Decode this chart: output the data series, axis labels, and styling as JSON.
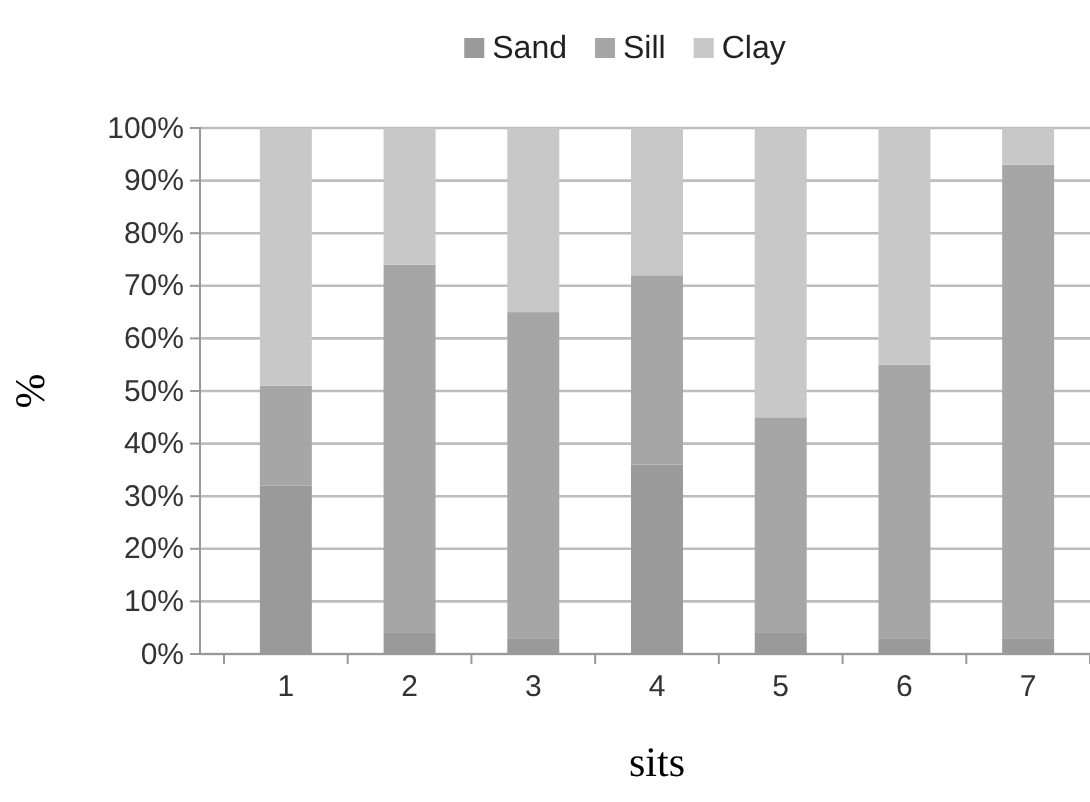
{
  "chart_data": {
    "type": "bar",
    "stacked": true,
    "categories": [
      "1",
      "2",
      "3",
      "4",
      "5",
      "6",
      "7"
    ],
    "series": [
      {
        "name": "Sand",
        "color": "#9a9a9a",
        "values": [
          32,
          4,
          3,
          36,
          4,
          3,
          3
        ]
      },
      {
        "name": "Sill",
        "color": "#a6a6a6",
        "values": [
          19,
          70,
          62,
          36,
          41,
          52,
          90
        ]
      },
      {
        "name": "Clay",
        "color": "#c8c8c8",
        "values": [
          49,
          26,
          35,
          28,
          55,
          45,
          7
        ]
      }
    ],
    "xlabel": "sits",
    "ylabel": "%",
    "ylim": [
      0,
      100
    ],
    "yticks": [
      {
        "value": 0,
        "label": "0%"
      },
      {
        "value": 10,
        "label": "10%"
      },
      {
        "value": 20,
        "label": "20%"
      },
      {
        "value": 30,
        "label": "30%"
      },
      {
        "value": 40,
        "label": "40%"
      },
      {
        "value": 50,
        "label": "50%"
      },
      {
        "value": 60,
        "label": "60%"
      },
      {
        "value": 70,
        "label": "70%"
      },
      {
        "value": 80,
        "label": "80%"
      },
      {
        "value": 90,
        "label": "90%"
      },
      {
        "value": 100,
        "label": "100%"
      }
    ],
    "grid": "y",
    "legend": "top"
  }
}
